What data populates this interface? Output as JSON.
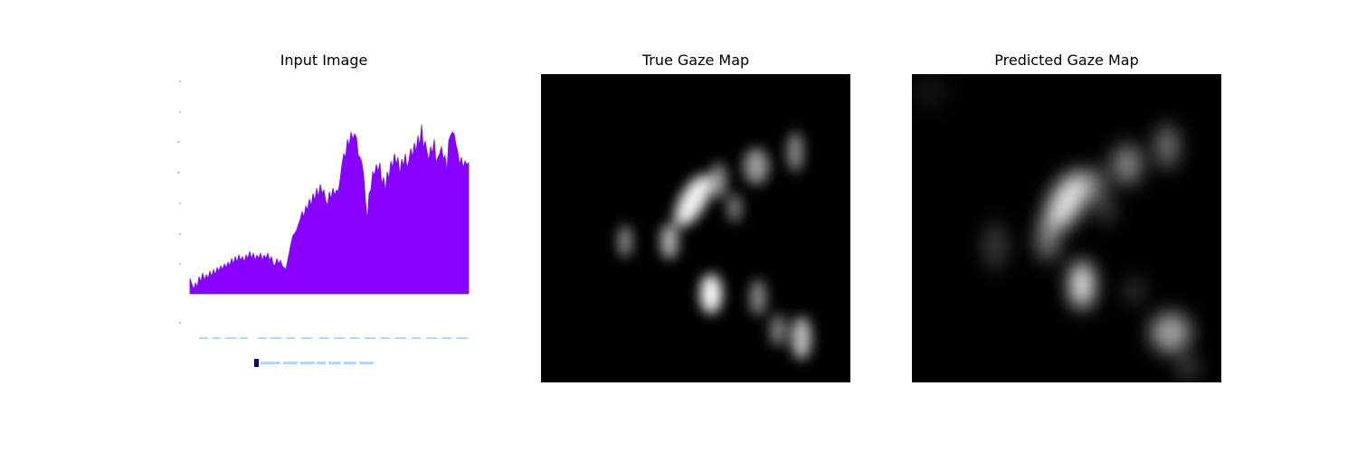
{
  "panels": {
    "input": {
      "title": "Input Image"
    },
    "true_gaze": {
      "title": "True Gaze Map"
    },
    "predicted_gaze": {
      "title": "Predicted Gaze Map"
    }
  },
  "input_image": {
    "area_color": "#8800ff",
    "legend_swatch_color": "#000080",
    "faint_text_color": "#9fd3ff"
  },
  "heatmap_colors": {
    "background": "#000000",
    "blob": "#ffffff"
  }
}
